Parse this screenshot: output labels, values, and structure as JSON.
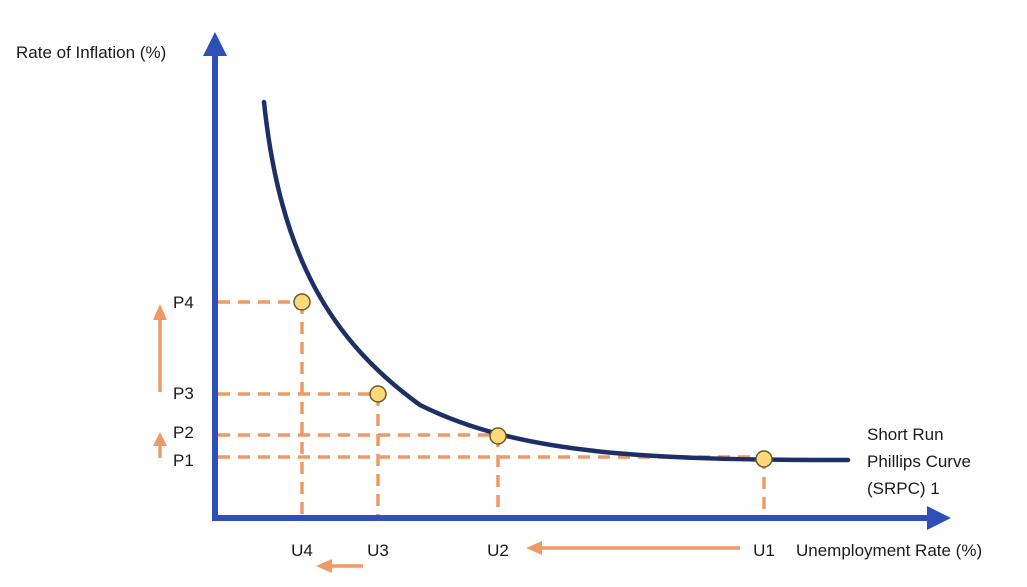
{
  "axes": {
    "y_label": "Rate of Inflation (%)",
    "x_label": "Unemployment Rate (%)"
  },
  "curve": {
    "label_lines": [
      "Short Run",
      "Phillips Curve",
      "(SRPC) 1"
    ]
  },
  "points": [
    {
      "p_label": "P1",
      "u_label": "U1"
    },
    {
      "p_label": "P2",
      "u_label": "U2"
    },
    {
      "p_label": "P3",
      "u_label": "U3"
    },
    {
      "p_label": "P4",
      "u_label": "U4"
    }
  ],
  "colors": {
    "axis": "#2e4fb5",
    "curve": "#1c2f66",
    "guide": "#ee9a67",
    "point_fill": "#ffd97a",
    "point_stroke": "#6b5a2a",
    "arrow": "#ee9a67"
  }
}
